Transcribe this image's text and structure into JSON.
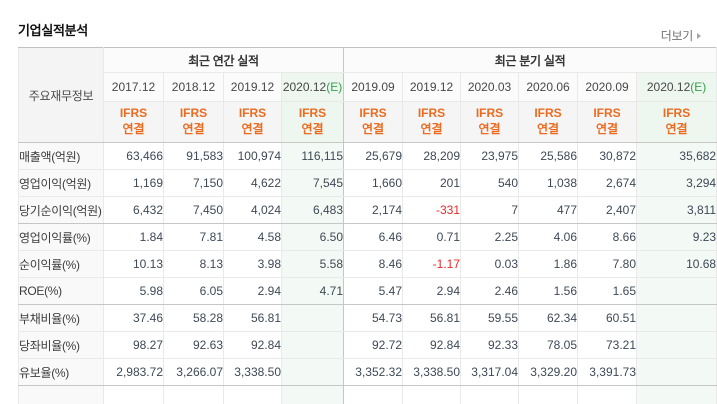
{
  "page": {
    "title": "기업실적분석",
    "more_link": "더보기"
  },
  "colors": {
    "accent_orange": "#eb6c20",
    "estimate_green": "#36a14c",
    "negative_red": "#e82a2a",
    "estimate_header_bg": "#edf6ef",
    "estimate_col_bg": "#f3f9f4",
    "header_bg": "#fbfbfb",
    "ifrs_row_bg": "#f5f5f5",
    "label_col_bg": "#f9f9f9",
    "divider_dark": "#c6c6c6",
    "divider_light": "#e9e9e9"
  },
  "table": {
    "corner_label": "주요재무정보",
    "groups": [
      {
        "label": "최근 연간 실적",
        "span": 4
      },
      {
        "label": "최근 분기 실적",
        "span": 6
      }
    ],
    "ifrs_line1": "IFRS",
    "ifrs_line2": "연결",
    "columns": [
      {
        "period": "2017.12",
        "estimate": false
      },
      {
        "period": "2018.12",
        "estimate": false
      },
      {
        "period": "2019.12",
        "estimate": false
      },
      {
        "period": "2020.12",
        "estimate": true,
        "estimate_suffix": "(E)"
      },
      {
        "period": "2019.09",
        "estimate": false
      },
      {
        "period": "2019.12",
        "estimate": false
      },
      {
        "period": "2020.03",
        "estimate": false
      },
      {
        "period": "2020.06",
        "estimate": false
      },
      {
        "period": "2020.09",
        "estimate": false
      },
      {
        "period": "2020.12",
        "estimate": true,
        "estimate_suffix": "(E)"
      }
    ],
    "rows": [
      {
        "label": "매출액(억원)",
        "values": [
          "63,466",
          "91,583",
          "100,974",
          "116,115",
          "25,679",
          "28,209",
          "23,975",
          "25,586",
          "30,872",
          "35,682"
        ],
        "group_end": false
      },
      {
        "label": "영업이익(억원)",
        "values": [
          "1,169",
          "7,150",
          "4,622",
          "7,545",
          "1,660",
          "201",
          "540",
          "1,038",
          "2,674",
          "3,294"
        ],
        "group_end": false
      },
      {
        "label": "당기순이익(억원)",
        "values": [
          "6,432",
          "7,450",
          "4,024",
          "6,483",
          "2,174",
          "-331",
          "7",
          "477",
          "2,407",
          "3,811"
        ],
        "group_end": true
      },
      {
        "label": "영업이익률(%)",
        "values": [
          "1.84",
          "7.81",
          "4.58",
          "6.50",
          "6.46",
          "0.71",
          "2.25",
          "4.06",
          "8.66",
          "9.23"
        ],
        "group_end": false
      },
      {
        "label": "순이익률(%)",
        "values": [
          "10.13",
          "8.13",
          "3.98",
          "5.58",
          "8.46",
          "-1.17",
          "0.03",
          "1.86",
          "7.80",
          "10.68"
        ],
        "group_end": false
      },
      {
        "label": "ROE(%)",
        "values": [
          "5.98",
          "6.05",
          "2.94",
          "4.71",
          "5.47",
          "2.94",
          "2.46",
          "1.56",
          "1.65",
          ""
        ],
        "group_end": true
      },
      {
        "label": "부채비율(%)",
        "values": [
          "37.46",
          "58.28",
          "56.81",
          "",
          "54.73",
          "56.81",
          "59.55",
          "62.34",
          "60.51",
          ""
        ],
        "group_end": false
      },
      {
        "label": "당좌비율(%)",
        "values": [
          "98.27",
          "92.63",
          "92.84",
          "",
          "92.72",
          "92.84",
          "92.33",
          "78.05",
          "73.21",
          ""
        ],
        "group_end": false
      },
      {
        "label": "유보율(%)",
        "values": [
          "2,983.72",
          "3,266.07",
          "3,338.50",
          "",
          "3,352.32",
          "3,338.50",
          "3,317.04",
          "3,329.20",
          "3,391.73",
          ""
        ],
        "group_end": true
      }
    ]
  }
}
